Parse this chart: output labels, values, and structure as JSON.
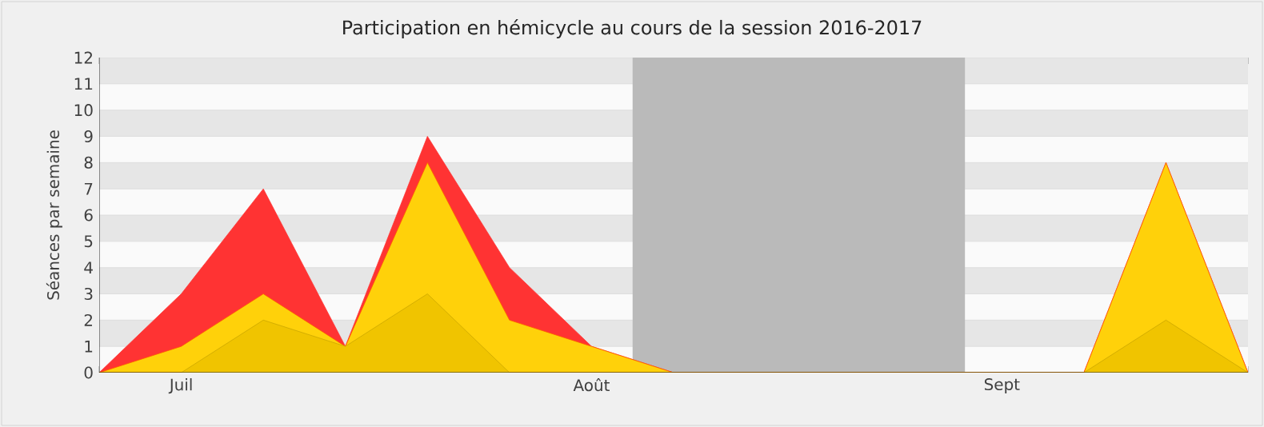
{
  "chart_data": {
    "type": "area",
    "title": "Participation en hémicycle au cours de la session 2016-2017",
    "ylabel": "Séances par semaine",
    "categories": [
      null,
      "Juil",
      null,
      null,
      null,
      null,
      "Août",
      null,
      null,
      null,
      null,
      "Sept",
      null,
      null,
      null
    ],
    "series": [
      {
        "color": "#ff3333",
        "values": [
          0,
          3,
          7,
          1,
          9,
          4,
          1,
          0,
          0,
          0,
          0,
          0,
          0,
          8,
          0
        ]
      },
      {
        "color": "#ffd10a",
        "values": [
          0,
          1,
          3,
          1,
          8,
          2,
          1,
          0,
          0,
          0,
          0,
          0,
          0,
          8,
          0
        ]
      },
      {
        "color": "#f0c400",
        "values": [
          0,
          0,
          2,
          1,
          3,
          0,
          0,
          0,
          0,
          0,
          0,
          0,
          0,
          2,
          0
        ]
      }
    ],
    "ylim": [
      0,
      12
    ],
    "yticks": [
      0,
      1,
      2,
      3,
      4,
      5,
      6,
      7,
      8,
      9,
      10,
      11,
      12
    ],
    "grid": "y"
  }
}
